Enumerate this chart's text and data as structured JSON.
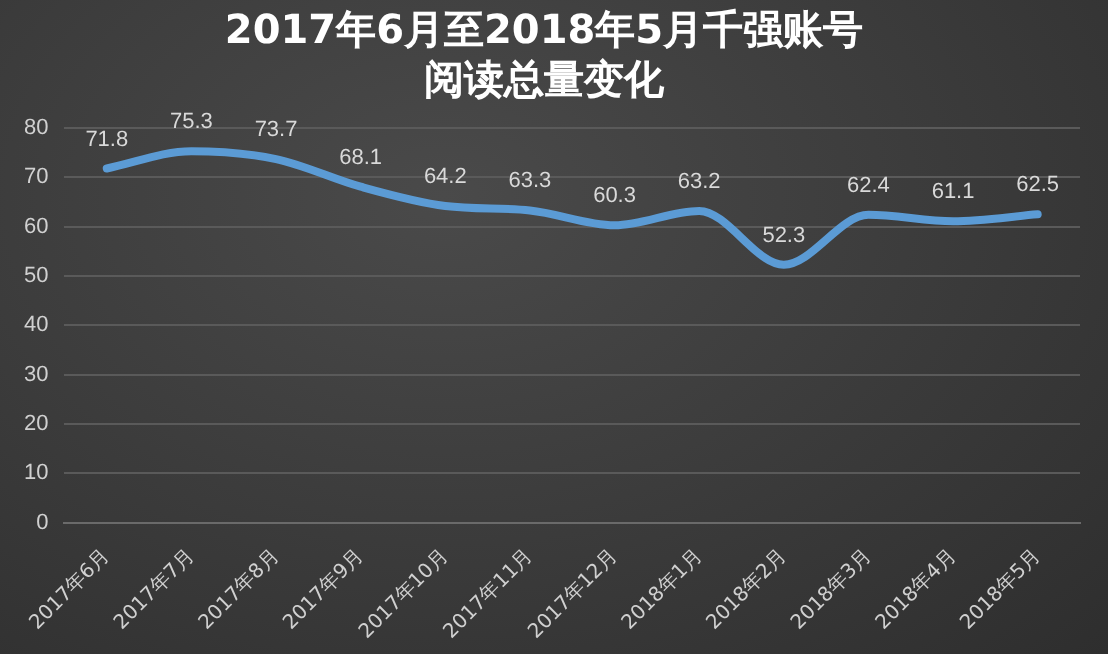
{
  "chart_data": {
    "type": "line",
    "title": "2017年6月至2018年5月千强账号阅读总量变化",
    "categories": [
      "2017年6月",
      "2017年7月",
      "2017年8月",
      "2017年9月",
      "2017年10月",
      "2017年11月",
      "2017年12月",
      "2018年1月",
      "2018年2月",
      "2018年3月",
      "2018年4月",
      "2018年5月"
    ],
    "series": [
      {
        "color": "#5b9bd5",
        "values": [
          71.8,
          75.3,
          73.7,
          68.1,
          64.2,
          63.3,
          60.3,
          63.2,
          52.3,
          62.4,
          61.1,
          62.5
        ]
      }
    ],
    "ylim": [
      0,
      80
    ],
    "yticks": [
      0,
      10,
      20,
      30,
      40,
      50,
      60,
      70,
      80
    ],
    "grid": "y",
    "legend": false,
    "marker": "none",
    "line_style": "solid",
    "data_labels": true
  }
}
